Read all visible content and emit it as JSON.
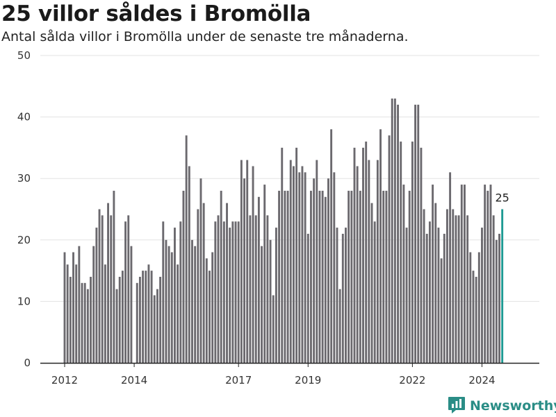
{
  "title": "25 villor såldes i Bromölla",
  "subtitle": "Antal sålda villor i Bromölla under de senaste tre månaderna.",
  "brand": {
    "name": "Newsworthy",
    "icon": "newsworthy-logo-icon"
  },
  "colors": {
    "bar": "#6b696e",
    "highlight": "#1e9a93",
    "grid": "#e3e3e3",
    "axis": "#222222",
    "brand": "#2a8d86"
  },
  "chart_data": {
    "type": "bar",
    "title": "25 villor såldes i Bromölla",
    "subtitle": "Antal sålda villor i Bromölla under de senaste tre månaderna.",
    "xlabel": "",
    "ylabel": "",
    "ylim": [
      0,
      50
    ],
    "yticks": [
      0,
      10,
      20,
      30,
      40,
      50
    ],
    "grid": true,
    "legend": "none",
    "x_start": "2012-01",
    "x_interval": "month",
    "xtick_labels": [
      {
        "label": "2012",
        "index": 0
      },
      {
        "label": "2014",
        "index": 24
      },
      {
        "label": "2017",
        "index": 60
      },
      {
        "label": "2019",
        "index": 84
      },
      {
        "label": "2022",
        "index": 120
      },
      {
        "label": "2024",
        "index": 144
      }
    ],
    "values": [
      18,
      16,
      14,
      18,
      16,
      19,
      13,
      13,
      12,
      14,
      19,
      22,
      25,
      24,
      16,
      26,
      24,
      28,
      12,
      14,
      15,
      23,
      24,
      19,
      0,
      13,
      14,
      15,
      15,
      16,
      15,
      11,
      12,
      14,
      23,
      20,
      19,
      18,
      22,
      16,
      23,
      28,
      37,
      32,
      20,
      19,
      25,
      30,
      26,
      17,
      15,
      18,
      23,
      24,
      28,
      23,
      26,
      22,
      23,
      23,
      23,
      33,
      30,
      33,
      24,
      32,
      24,
      27,
      19,
      29,
      24,
      20,
      11,
      22,
      28,
      35,
      28,
      28,
      33,
      32,
      35,
      31,
      32,
      31,
      21,
      28,
      30,
      33,
      28,
      28,
      27,
      30,
      38,
      31,
      22,
      12,
      21,
      22,
      28,
      28,
      35,
      32,
      28,
      35,
      36,
      33,
      26,
      23,
      33,
      38,
      28,
      28,
      37,
      43,
      43,
      42,
      36,
      29,
      22,
      28,
      36,
      42,
      42,
      35,
      25,
      21,
      23,
      29,
      26,
      22,
      17,
      21,
      25,
      31,
      25,
      24,
      24,
      29,
      29,
      24,
      18,
      15,
      14,
      18,
      22,
      29,
      28,
      29,
      24,
      20,
      21,
      25
    ],
    "highlight": {
      "index": 151,
      "label": "25"
    }
  }
}
